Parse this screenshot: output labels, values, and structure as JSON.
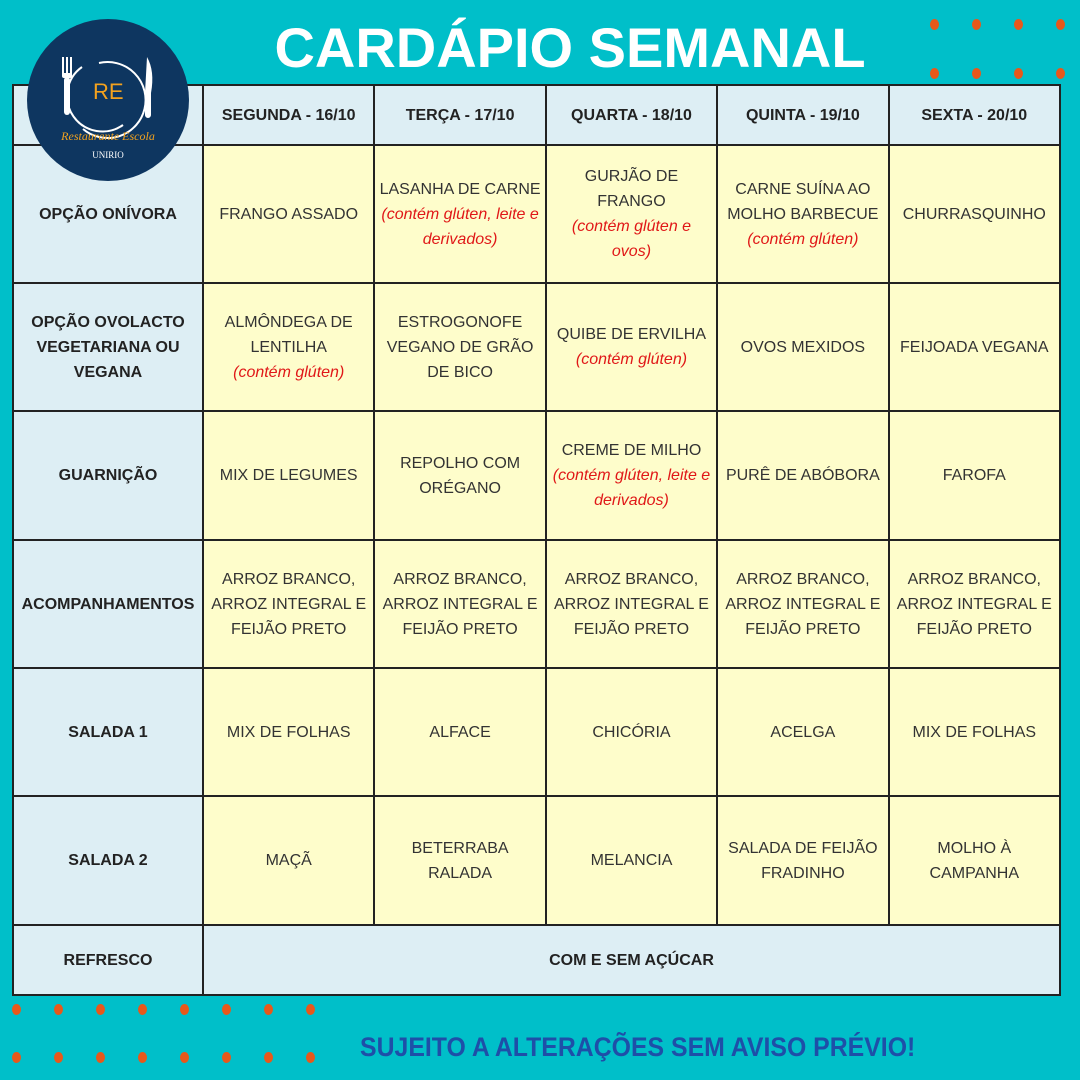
{
  "title": "CARDÁPIO SEMANAL",
  "logo": {
    "initials": "RE",
    "name": "Restaurante Escola",
    "institution": "UNIRIO"
  },
  "colors": {
    "background": "#00bfc9",
    "accent_dots": "#e8581a",
    "header_cell": "#ddeef4",
    "content_cell": "#fefdcb",
    "allergen_note": "#e01818",
    "footer_text": "#1e4fa8"
  },
  "days": [
    "SEGUNDA - 16/10",
    "TERÇA - 17/10",
    "QUARTA - 18/10",
    "QUINTA - 19/10",
    "SEXTA - 20/10"
  ],
  "rows": [
    {
      "label": "OPÇÃO ONÍVORA",
      "cells": [
        {
          "text": "FRANGO ASSADO",
          "note": ""
        },
        {
          "text": "LASANHA DE CARNE",
          "note": "(contém glúten, leite e derivados)"
        },
        {
          "text": "GURJÃO DE FRANGO",
          "note": "(contém glúten e ovos)"
        },
        {
          "text": "CARNE SUÍNA AO MOLHO BARBECUE",
          "note": "(contém glúten)"
        },
        {
          "text": "CHURRASQUINHO",
          "note": ""
        }
      ]
    },
    {
      "label": "OPÇÃO OVOLACTO VEGETARIANA OU VEGANA",
      "cells": [
        {
          "text": "ALMÔNDEGA DE LENTILHA",
          "note": "(contém glúten)"
        },
        {
          "text": "ESTROGONOFE VEGANO DE GRÃO DE BICO",
          "note": ""
        },
        {
          "text": "QUIBE DE ERVILHA",
          "note": "(contém glúten)"
        },
        {
          "text": "OVOS MEXIDOS",
          "note": ""
        },
        {
          "text": "FEIJOADA VEGANA",
          "note": ""
        }
      ]
    },
    {
      "label": "GUARNIÇÃO",
      "cells": [
        {
          "text": "MIX DE LEGUMES",
          "note": ""
        },
        {
          "text": "REPOLHO COM ORÉGANO",
          "note": ""
        },
        {
          "text": "CREME DE MILHO",
          "note": "(contém glúten, leite e derivados)"
        },
        {
          "text": "PURÊ DE ABÓBORA",
          "note": ""
        },
        {
          "text": "FAROFA",
          "note": ""
        }
      ]
    },
    {
      "label": "ACOMPANHAMENTOS",
      "cells": [
        {
          "text": "ARROZ BRANCO, ARROZ INTEGRAL E FEIJÃO PRETO",
          "note": ""
        },
        {
          "text": "ARROZ BRANCO, ARROZ INTEGRAL E FEIJÃO PRETO",
          "note": ""
        },
        {
          "text": "ARROZ BRANCO, ARROZ INTEGRAL E FEIJÃO PRETO",
          "note": ""
        },
        {
          "text": "ARROZ BRANCO, ARROZ INTEGRAL E FEIJÃO PRETO",
          "note": ""
        },
        {
          "text": "ARROZ BRANCO, ARROZ INTEGRAL E FEIJÃO PRETO",
          "note": ""
        }
      ]
    },
    {
      "label": "SALADA 1",
      "cells": [
        {
          "text": "MIX DE FOLHAS",
          "note": ""
        },
        {
          "text": "ALFACE",
          "note": ""
        },
        {
          "text": "CHICÓRIA",
          "note": ""
        },
        {
          "text": "ACELGA",
          "note": ""
        },
        {
          "text": "MIX DE FOLHAS",
          "note": ""
        }
      ]
    },
    {
      "label": "SALADA 2",
      "cells": [
        {
          "text": "MAÇÃ",
          "note": ""
        },
        {
          "text": "BETERRABA RALADA",
          "note": ""
        },
        {
          "text": "MELANCIA",
          "note": ""
        },
        {
          "text": "SALADA DE FEIJÃO FRADINHO",
          "note": ""
        },
        {
          "text": "MOLHO À CAMPANHA",
          "note": ""
        }
      ]
    }
  ],
  "refresco": {
    "label": "REFRESCO",
    "value": "COM E SEM AÇÚCAR"
  },
  "footer": "SUJEITO A ALTERAÇÕES SEM AVISO PRÉVIO!"
}
